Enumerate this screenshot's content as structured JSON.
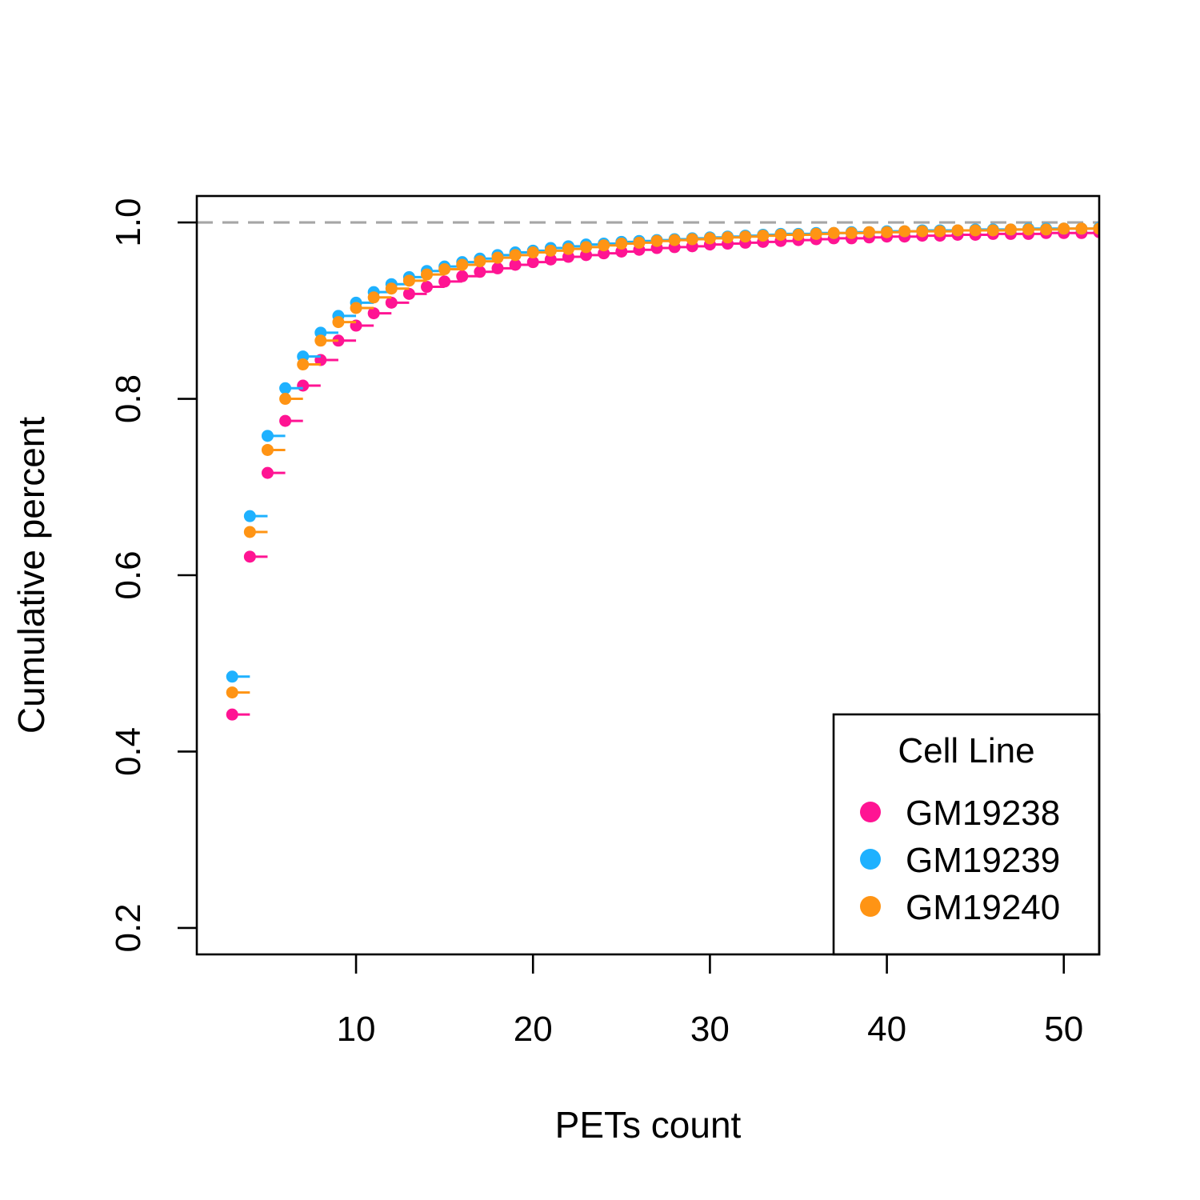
{
  "chart_data": {
    "type": "line",
    "subtype": "step-ecdf",
    "xlabel": "PETs count",
    "ylabel": "Cumulative percent",
    "xlim": [
      1,
      52
    ],
    "ylim": [
      0.17,
      1.03
    ],
    "x_ticks": [
      10,
      20,
      30,
      40,
      50
    ],
    "y_ticks": [
      0.2,
      0.4,
      0.6,
      0.8,
      1.0
    ],
    "y_tick_labels": [
      "0.2",
      "0.4",
      "0.6",
      "0.8",
      "1.0"
    ],
    "reference_line": {
      "y": 1.0,
      "color": "#a6a6a6",
      "style": "dashed"
    },
    "x": [
      3,
      4,
      5,
      6,
      7,
      8,
      9,
      10,
      11,
      12,
      13,
      14,
      15,
      16,
      17,
      18,
      19,
      20,
      21,
      22,
      23,
      24,
      25,
      26,
      27,
      28,
      29,
      30,
      31,
      32,
      33,
      34,
      35,
      36,
      37,
      38,
      39,
      40,
      41,
      42,
      43,
      44,
      45,
      46,
      47,
      48,
      49,
      50,
      51,
      52
    ],
    "series": [
      {
        "name": "GM19238",
        "color": "#ff1493",
        "values": [
          0.442,
          0.621,
          0.716,
          0.775,
          0.815,
          0.844,
          0.866,
          0.883,
          0.897,
          0.909,
          0.919,
          0.927,
          0.933,
          0.939,
          0.944,
          0.948,
          0.952,
          0.955,
          0.958,
          0.961,
          0.963,
          0.965,
          0.967,
          0.969,
          0.971,
          0.972,
          0.973,
          0.975,
          0.976,
          0.977,
          0.978,
          0.979,
          0.98,
          0.981,
          0.982,
          0.982,
          0.983,
          0.984,
          0.984,
          0.985,
          0.985,
          0.986,
          0.986,
          0.987,
          0.987,
          0.987,
          0.988,
          0.988,
          0.988,
          0.989
        ]
      },
      {
        "name": "GM19239",
        "color": "#1eb1ff",
        "values": [
          0.485,
          0.667,
          0.758,
          0.812,
          0.848,
          0.875,
          0.894,
          0.909,
          0.921,
          0.93,
          0.938,
          0.945,
          0.95,
          0.955,
          0.959,
          0.963,
          0.966,
          0.968,
          0.971,
          0.973,
          0.975,
          0.976,
          0.978,
          0.979,
          0.98,
          0.981,
          0.982,
          0.983,
          0.984,
          0.985,
          0.986,
          0.987,
          0.987,
          0.988,
          0.988,
          0.989,
          0.989,
          0.99,
          0.99,
          0.991,
          0.991,
          0.991,
          0.992,
          0.992,
          0.992,
          0.993,
          0.993,
          0.993,
          0.993,
          0.994
        ]
      },
      {
        "name": "GM19240",
        "color": "#ff9414",
        "values": [
          0.467,
          0.649,
          0.742,
          0.8,
          0.839,
          0.866,
          0.887,
          0.903,
          0.915,
          0.925,
          0.934,
          0.941,
          0.947,
          0.952,
          0.956,
          0.96,
          0.963,
          0.966,
          0.968,
          0.97,
          0.972,
          0.974,
          0.976,
          0.977,
          0.979,
          0.98,
          0.981,
          0.982,
          0.983,
          0.984,
          0.985,
          0.986,
          0.986,
          0.987,
          0.988,
          0.988,
          0.989,
          0.989,
          0.99,
          0.99,
          0.99,
          0.991,
          0.991,
          0.991,
          0.992,
          0.992,
          0.992,
          0.993,
          0.993,
          0.993
        ]
      }
    ],
    "legend": {
      "title": "Cell Line",
      "position": "bottom-right",
      "entries": [
        "GM19238",
        "GM19239",
        "GM19240"
      ]
    },
    "grid": false
  }
}
